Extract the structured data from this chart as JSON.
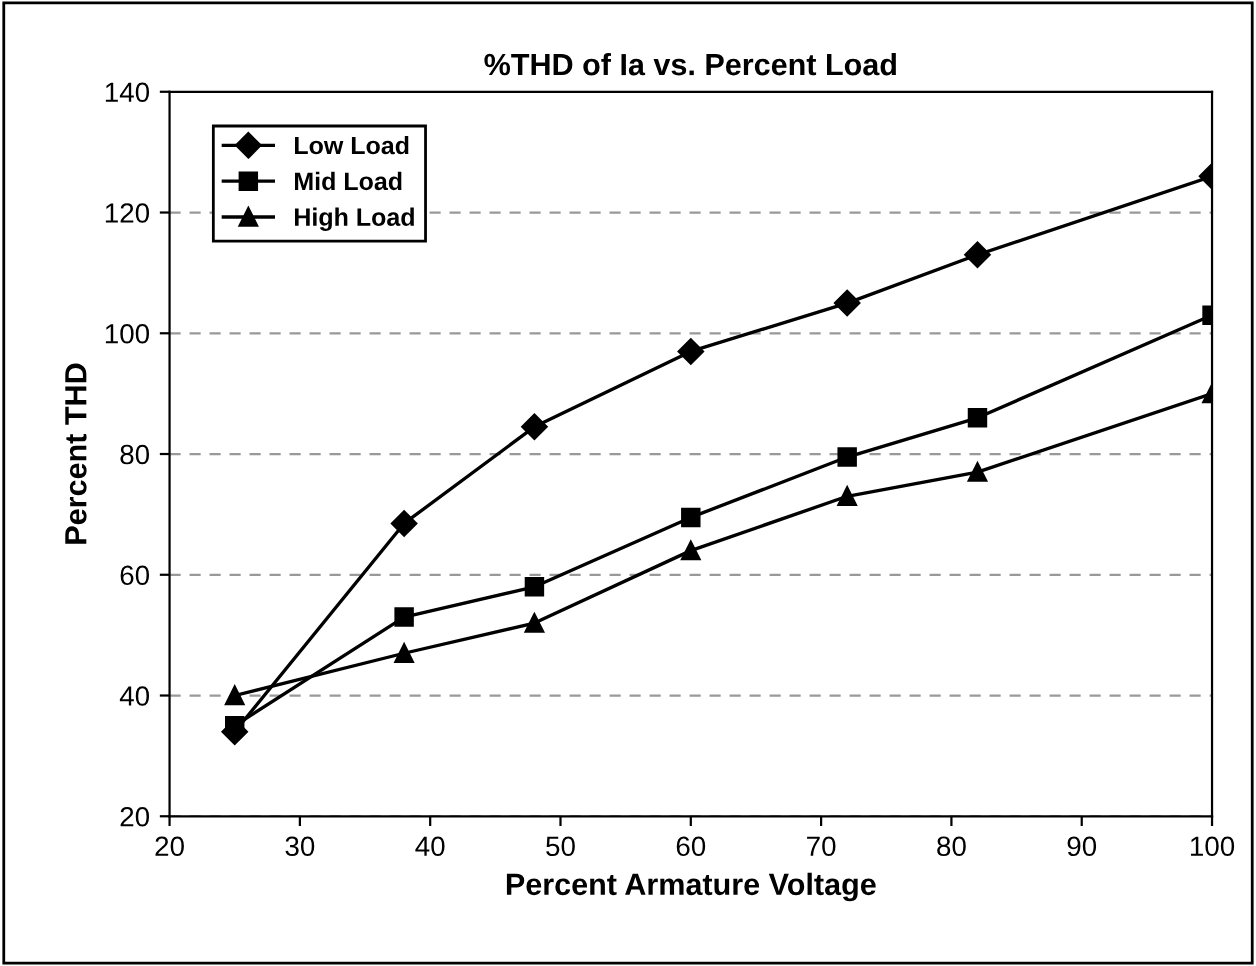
{
  "chart_data": {
    "type": "line",
    "title": "%THD of Ia vs. Percent Load",
    "xlabel": "Percent Armature Voltage",
    "ylabel": "Percent THD",
    "x": [
      25,
      38,
      48,
      60,
      72,
      82,
      100
    ],
    "series": [
      {
        "name": "Low Load",
        "color": "#000000",
        "marker": "diamond",
        "values": [
          34,
          68.5,
          84.5,
          97,
          105,
          113,
          126
        ]
      },
      {
        "name": "Mid Load",
        "color": "#000000",
        "marker": "square",
        "values": [
          35,
          53,
          58,
          69.5,
          79.5,
          86,
          103
        ]
      },
      {
        "name": "High Load",
        "color": "#000000",
        "marker": "triangle",
        "values": [
          40,
          47,
          52,
          64,
          73,
          77,
          90
        ]
      }
    ],
    "xlim": [
      20,
      100
    ],
    "xticks": [
      20,
      30,
      40,
      50,
      60,
      70,
      80,
      90,
      100
    ],
    "ylim": [
      20,
      140
    ],
    "yticks": [
      20,
      40,
      60,
      80,
      100,
      120,
      140
    ],
    "grid": "y",
    "legend": "top left",
    "line_style": "solid"
  }
}
